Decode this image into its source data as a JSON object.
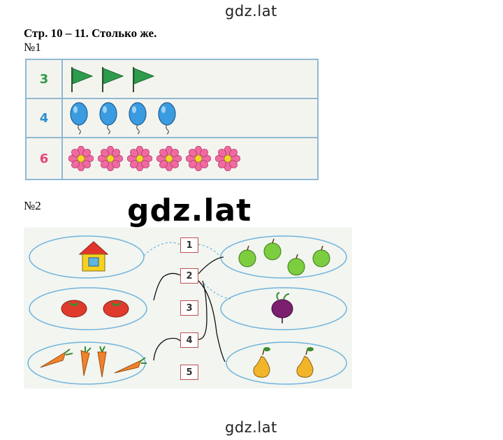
{
  "watermark": {
    "top": "gdz.lat",
    "big": "gdz.lat",
    "bottom": "gdz.lat"
  },
  "heading": "Стр. 10 – 11. Столько же.",
  "task1": {
    "label": "№1",
    "rows": [
      {
        "count": "3",
        "color": "#2e9a4a",
        "item": "flag",
        "quantity": 3
      },
      {
        "count": "4",
        "color": "#2a8fd0",
        "item": "balloon",
        "quantity": 4
      },
      {
        "count": "6",
        "color": "#e0457b",
        "item": "flower",
        "quantity": 6
      }
    ]
  },
  "task2": {
    "label": "№2",
    "numbers": [
      "1",
      "2",
      "3",
      "4",
      "5"
    ],
    "left_groups": [
      {
        "item": "house-icon",
        "quantity": 1
      },
      {
        "item": "tomato-icon",
        "quantity": 2
      },
      {
        "item": "carrot-icon",
        "quantity": 4
      }
    ],
    "right_groups": [
      {
        "item": "apple-icon",
        "quantity": 4
      },
      {
        "item": "beet-icon",
        "quantity": 1
      },
      {
        "item": "pear-icon",
        "quantity": 2
      }
    ]
  }
}
